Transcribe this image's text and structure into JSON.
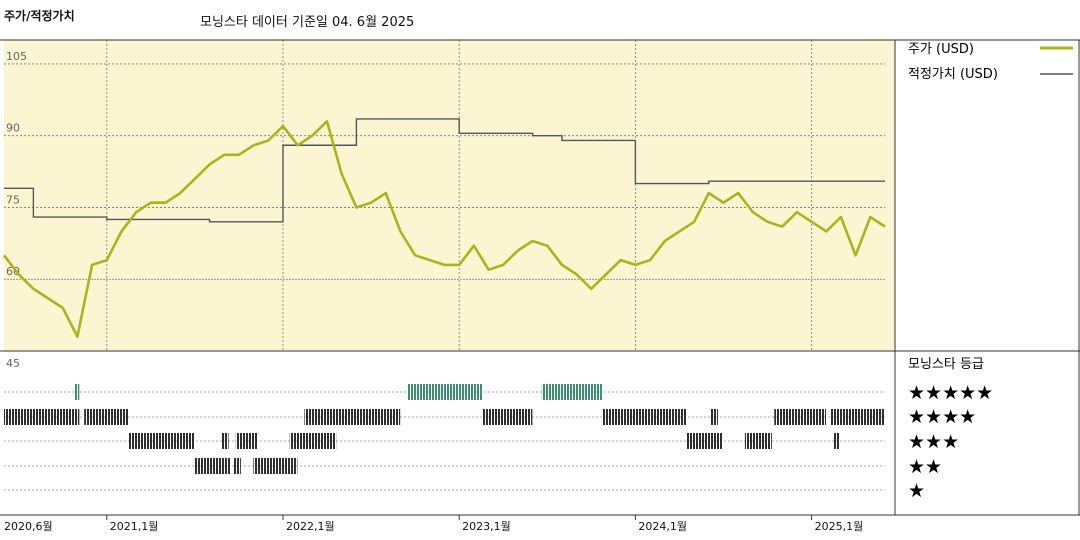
{
  "header": {
    "title": "주가/적정가치",
    "subtitle": "모닝스타 데이터 기준일 04. 6월 2025"
  },
  "legend": {
    "price_label": "주가 (USD)",
    "fair_value_label": "적정가치 (USD)",
    "rating_title": "모닝스타 등급",
    "stars": [
      "★★★★★",
      "★★★★",
      "★★★",
      "★★",
      "★"
    ]
  },
  "colors": {
    "price": "#aeb21c",
    "fair_value": "#555555",
    "plot_bg": "#fbf5d2",
    "rating_dark": "#3a3a3a",
    "rating_green": "#3f8e72"
  },
  "chart_data": [
    {
      "type": "line",
      "title": "주가/적정가치",
      "y_ticks": [
        105,
        90,
        75,
        60
      ],
      "ylim": [
        45,
        110
      ],
      "x_ticks": [
        {
          "label": "2020,6월",
          "date": "2020-06"
        },
        {
          "label": "2021,1월",
          "date": "2021-01"
        },
        {
          "label": "2022,1월",
          "date": "2022-01"
        },
        {
          "label": "2023,1월",
          "date": "2023-01"
        },
        {
          "label": "2024,1월",
          "date": "2024-01"
        },
        {
          "label": "2025,1월",
          "date": "2025-01"
        }
      ],
      "xlim": [
        "2020-06",
        "2025-06"
      ],
      "series": [
        {
          "name": "주가 (USD)",
          "points": [
            [
              "2020-06",
              65
            ],
            [
              "2020-07",
              61
            ],
            [
              "2020-08",
              58
            ],
            [
              "2020-09",
              56
            ],
            [
              "2020-10",
              54
            ],
            [
              "2020-11",
              48
            ],
            [
              "2020-12",
              63
            ],
            [
              "2021-01",
              64
            ],
            [
              "2021-02",
              70
            ],
            [
              "2021-03",
              74
            ],
            [
              "2021-04",
              76
            ],
            [
              "2021-05",
              76
            ],
            [
              "2021-06",
              78
            ],
            [
              "2021-07",
              81
            ],
            [
              "2021-08",
              84
            ],
            [
              "2021-09",
              86
            ],
            [
              "2021-10",
              86
            ],
            [
              "2021-11",
              88
            ],
            [
              "2021-12",
              89
            ],
            [
              "2022-01",
              92
            ],
            [
              "2022-02",
              88
            ],
            [
              "2022-03",
              90
            ],
            [
              "2022-04",
              93
            ],
            [
              "2022-05",
              82
            ],
            [
              "2022-06",
              75
            ],
            [
              "2022-07",
              76
            ],
            [
              "2022-08",
              78
            ],
            [
              "2022-09",
              70
            ],
            [
              "2022-10",
              65
            ],
            [
              "2022-11",
              64
            ],
            [
              "2022-12",
              63
            ],
            [
              "2023-01",
              63
            ],
            [
              "2023-02",
              67
            ],
            [
              "2023-03",
              62
            ],
            [
              "2023-04",
              63
            ],
            [
              "2023-05",
              66
            ],
            [
              "2023-06",
              68
            ],
            [
              "2023-07",
              67
            ],
            [
              "2023-08",
              63
            ],
            [
              "2023-09",
              61
            ],
            [
              "2023-10",
              58
            ],
            [
              "2023-11",
              61
            ],
            [
              "2023-12",
              64
            ],
            [
              "2024-01",
              63
            ],
            [
              "2024-02",
              64
            ],
            [
              "2024-03",
              68
            ],
            [
              "2024-04",
              70
            ],
            [
              "2024-05",
              72
            ],
            [
              "2024-06",
              78
            ],
            [
              "2024-07",
              76
            ],
            [
              "2024-08",
              78
            ],
            [
              "2024-09",
              74
            ],
            [
              "2024-10",
              72
            ],
            [
              "2024-11",
              71
            ],
            [
              "2024-12",
              74
            ],
            [
              "2025-01",
              72
            ],
            [
              "2025-02",
              70
            ],
            [
              "2025-03",
              73
            ],
            [
              "2025-04",
              65
            ],
            [
              "2025-05",
              73
            ],
            [
              "2025-06",
              71
            ]
          ]
        },
        {
          "name": "적정가치 (USD)",
          "steps": [
            [
              "2020-06",
              79
            ],
            [
              "2020-08",
              73
            ],
            [
              "2021-01",
              72.5
            ],
            [
              "2021-08",
              72
            ],
            [
              "2022-01",
              88
            ],
            [
              "2022-06",
              93.5
            ],
            [
              "2023-01",
              90.5
            ],
            [
              "2023-06",
              90
            ],
            [
              "2023-08",
              89
            ],
            [
              "2024-01",
              80
            ],
            [
              "2024-06",
              80.5
            ],
            [
              "2025-06",
              80.5
            ]
          ]
        }
      ]
    },
    {
      "type": "table",
      "title": "모닝스타 등급",
      "rows": [
        {
          "stars": 5,
          "periods": [
            [
              "2020-10-25",
              "2020-11-05"
            ],
            [
              "2022-09-15",
              "2023-02-20"
            ],
            [
              "2023-06-20",
              "2023-10-25"
            ]
          ]
        },
        {
          "stars": 4,
          "periods": [
            [
              "2020-06-01",
              "2020-11-05"
            ],
            [
              "2020-11-15",
              "2021-02-15"
            ],
            [
              "2022-02-15",
              "2022-08-31"
            ],
            [
              "2023-02-20",
              "2023-05-31"
            ],
            [
              "2023-10-25",
              "2024-04-15"
            ],
            [
              "2024-06-05",
              "2024-06-20"
            ],
            [
              "2024-10-15",
              "2025-01-31"
            ],
            [
              "2025-02-10",
              "2025-05-31"
            ]
          ]
        },
        {
          "stars": 3,
          "periods": [
            [
              "2021-02-15",
              "2021-06-30"
            ],
            [
              "2021-08-25",
              "2021-09-10"
            ],
            [
              "2021-09-25",
              "2021-11-10"
            ],
            [
              "2022-01-15",
              "2022-04-20"
            ],
            [
              "2024-04-15",
              "2024-06-30"
            ],
            [
              "2024-08-15",
              "2024-10-10"
            ],
            [
              "2025-02-15",
              "2025-02-28"
            ]
          ]
        },
        {
          "stars": 2,
          "periods": [
            [
              "2021-06-30",
              "2021-09-15"
            ],
            [
              "2021-09-20",
              "2021-10-05"
            ],
            [
              "2021-10-31",
              "2022-01-31"
            ]
          ]
        },
        {
          "stars": 1,
          "periods": []
        }
      ]
    }
  ]
}
